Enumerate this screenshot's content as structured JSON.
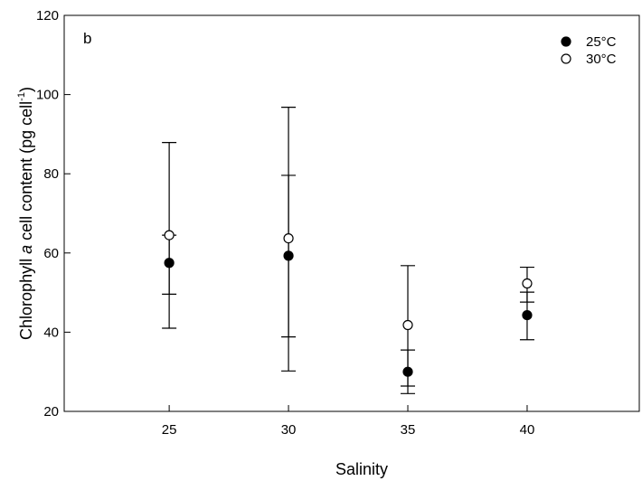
{
  "chart_data": {
    "type": "scatter",
    "panel_label": "b",
    "xlabel": "Salinity",
    "ylabel_main": "Chlorophyll ",
    "ylabel_italic": "a",
    "ylabel_rest": " cell content (pg cell",
    "ylabel_sup": "-1",
    "ylabel_close": ")",
    "x_ticks": [
      25,
      30,
      35,
      40
    ],
    "y_ticks": [
      20,
      40,
      60,
      80,
      100,
      120
    ],
    "xlim": [
      20.6,
      44.7
    ],
    "ylim": [
      20,
      120
    ],
    "legend_position": "top-right",
    "series": [
      {
        "name": "25°C",
        "marker": "filled-circle",
        "color": "#000000",
        "points": [
          {
            "x": 25,
            "y": 57.5,
            "err_low": 41.0,
            "err_high": 64.5
          },
          {
            "x": 30,
            "y": 59.3,
            "err_low": 38.8,
            "err_high": 79.6
          },
          {
            "x": 35,
            "y": 30.0,
            "err_low": 24.5,
            "err_high": 35.5
          },
          {
            "x": 40,
            "y": 44.3,
            "err_low": 38.1,
            "err_high": 50.1
          }
        ]
      },
      {
        "name": "30°C",
        "marker": "open-circle",
        "color": "#000000",
        "points": [
          {
            "x": 25,
            "y": 64.5,
            "err_low": 49.6,
            "err_high": 87.9
          },
          {
            "x": 30,
            "y": 63.7,
            "err_low": 30.2,
            "err_high": 96.8
          },
          {
            "x": 35,
            "y": 41.8,
            "err_low": 26.4,
            "err_high": 56.8
          },
          {
            "x": 40,
            "y": 52.3,
            "err_low": 47.6,
            "err_high": 56.4
          }
        ]
      }
    ]
  }
}
